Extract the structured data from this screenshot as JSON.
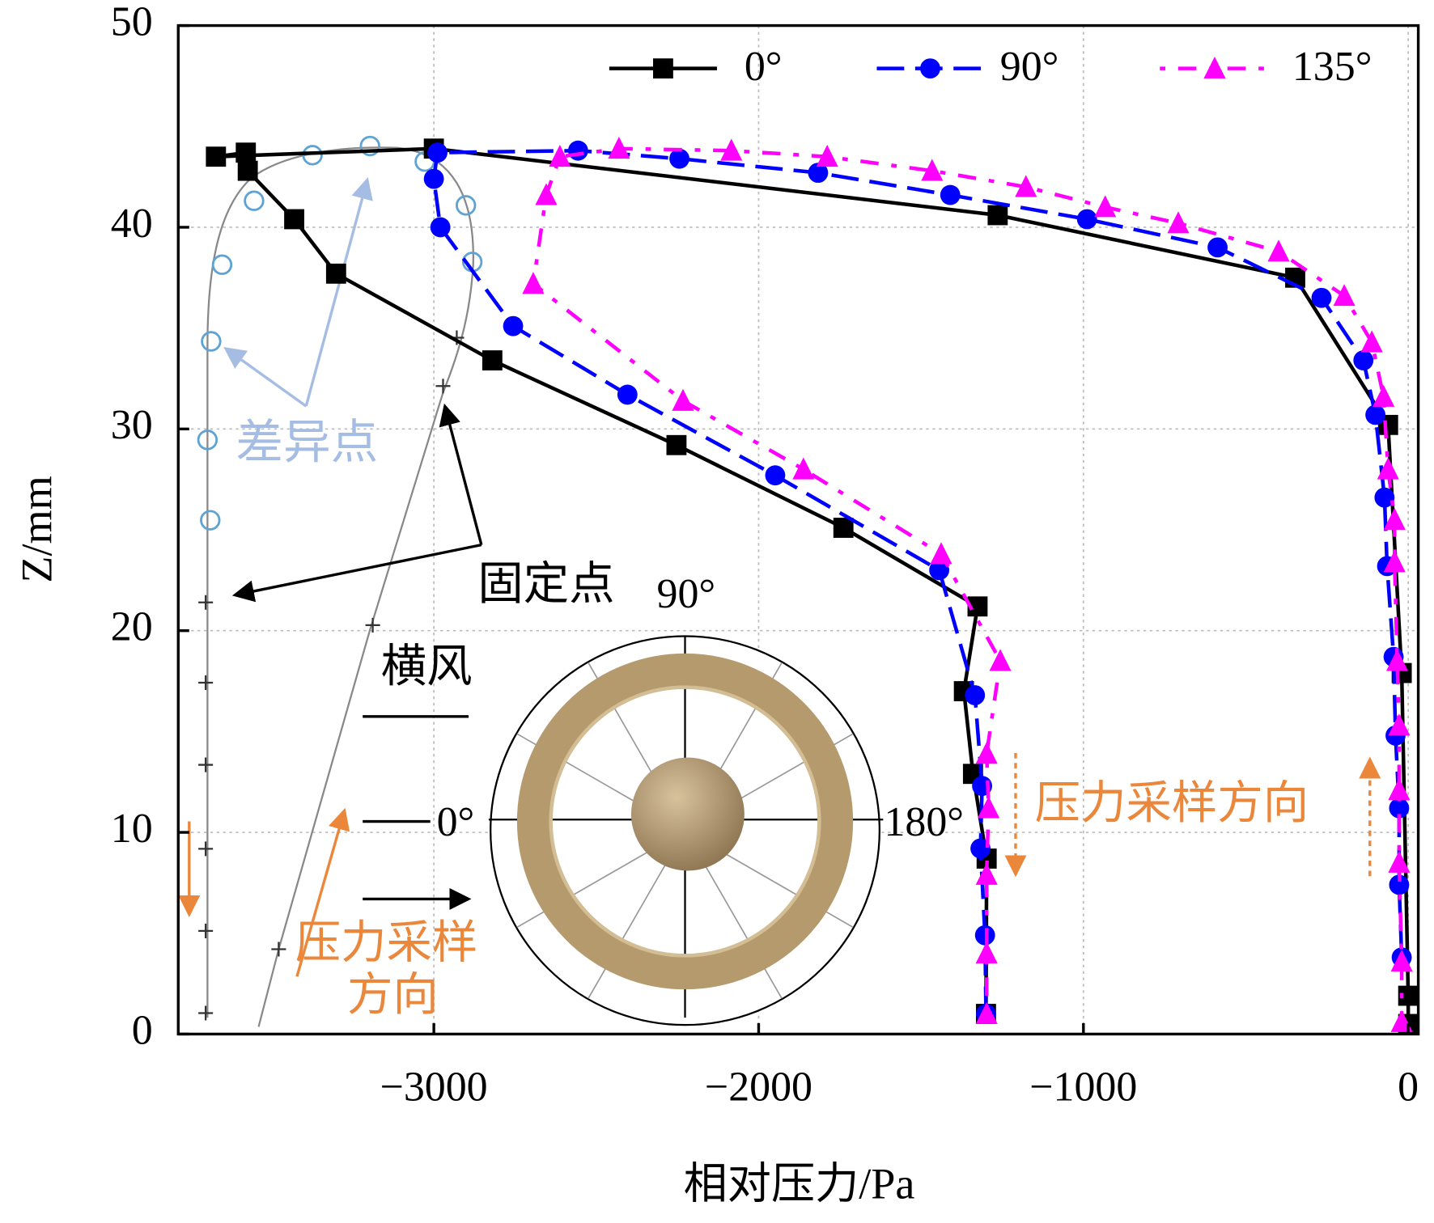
{
  "chart_data": {
    "type": "line",
    "x_label": "相对压力/Pa",
    "y_label": "Z/mm",
    "xlim": [
      -3787,
      31
    ],
    "ylim": [
      0,
      50
    ],
    "xticks": [
      {
        "value": -3000,
        "label": "−3000"
      },
      {
        "value": -2000,
        "label": "−2000"
      },
      {
        "value": -1000,
        "label": "−1000"
      },
      0
    ],
    "yticks": [
      0,
      10,
      20,
      30,
      40,
      50
    ],
    "grid": true,
    "legend": "top-right",
    "series": [
      {
        "name": "0°",
        "color": "#000000",
        "line_style": "solid",
        "marker": "square",
        "x": [
          -1300,
          -1298,
          -1340,
          -1368,
          -1326,
          -1739,
          -2253,
          -2820,
          -3301,
          -3430,
          -3573,
          -3579,
          -3671,
          -3000,
          -1264,
          -348,
          -62,
          -20,
          0,
          0
        ],
        "y": [
          1.0,
          8.7,
          12.9,
          17.0,
          21.2,
          25.1,
          29.2,
          33.4,
          37.7,
          40.4,
          42.8,
          43.7,
          43.5,
          43.9,
          40.6,
          37.5,
          30.2,
          17.9,
          1.9,
          0.5
        ]
      },
      {
        "name": "90°",
        "color": "#0000ff",
        "line_style": "dash",
        "marker": "circle",
        "x": [
          -1300,
          -1303,
          -1317,
          -1312,
          -1334,
          -1444,
          -1949,
          -2404,
          -2756,
          -2980,
          -3000,
          -2989,
          -2556,
          -2244,
          -1817,
          -1410,
          -989,
          -587,
          -267,
          -138,
          -101,
          -73,
          -65,
          -45,
          -39,
          -28,
          -28,
          -20
        ],
        "y": [
          1.0,
          4.9,
          9.2,
          12.3,
          16.8,
          23.0,
          27.7,
          31.7,
          35.1,
          40.0,
          42.4,
          43.7,
          43.8,
          43.4,
          42.7,
          41.6,
          40.4,
          39.0,
          36.5,
          33.4,
          30.7,
          26.6,
          23.2,
          18.7,
          14.8,
          11.2,
          7.4,
          3.8
        ]
      },
      {
        "name": "135°",
        "color": "#ff00ff",
        "line_style": "dashdot",
        "marker": "triangle",
        "x": [
          -1298,
          -1298,
          -1298,
          -1292,
          -1298,
          -1256,
          -1438,
          -1862,
          -2233,
          -2694,
          -2654,
          -2612,
          -2430,
          -2084,
          -1789,
          -1466,
          -1177,
          -933,
          -708,
          -399,
          -197,
          -112,
          -76,
          -62,
          -42,
          -42,
          -34,
          -28,
          -28,
          -28,
          -20,
          -20
        ],
        "y": [
          1.0,
          4.0,
          7.9,
          11.2,
          13.9,
          18.5,
          23.8,
          28.0,
          31.4,
          37.2,
          41.6,
          43.5,
          43.9,
          43.8,
          43.5,
          42.8,
          42.0,
          41.0,
          40.2,
          38.8,
          36.6,
          34.3,
          31.6,
          28.0,
          25.5,
          23.4,
          18.5,
          15.3,
          12.1,
          8.5,
          3.6,
          0.6
        ]
      }
    ]
  },
  "annotations": {
    "difference_points": "差异点",
    "fixed_points": "固定点",
    "crosswind": "横风",
    "angle_90": "90°",
    "angle_0": "0°",
    "angle_180": "180°",
    "sampling_direction_right": "压力采样方向",
    "sampling_direction_left_line1": "压力采样",
    "sampling_direction_left_line2": "方向"
  }
}
